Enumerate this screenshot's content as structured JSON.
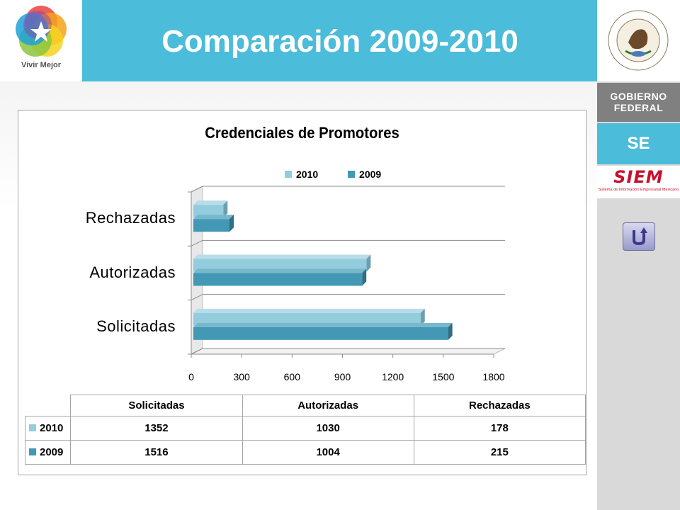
{
  "header": {
    "title": "Comparación 2009-2010",
    "logo_text": "Vivir Mejor"
  },
  "sidebar": {
    "gobierno_line1": "Gobierno",
    "gobierno_line2": "Federal",
    "se_label": "SE",
    "siem_label": "SIEM",
    "siem_sub": "Sistema de Información Empresarial Mexicano",
    "seal_text": "Estados Unidos Mexicanos",
    "back_icon": "return-arrow-icon"
  },
  "colors": {
    "accent": "#4bbcd9",
    "series_2010": "#93cddd",
    "series_2009": "#4298b5",
    "gobierno": "#808080",
    "siem": "#c8102e"
  },
  "chart_data": {
    "type": "bar",
    "orientation": "horizontal",
    "title": "Credenciales de Promotores",
    "categories": [
      "Solicitadas",
      "Autorizadas",
      "Rechazadas"
    ],
    "series": [
      {
        "name": "2010",
        "values": [
          1352,
          1030,
          178
        ]
      },
      {
        "name": "2009",
        "values": [
          1516,
          1004,
          215
        ]
      }
    ],
    "xlim": [
      0,
      1800
    ],
    "ticks": [
      "0",
      "300",
      "600",
      "900",
      "1200",
      "1500",
      "1800"
    ],
    "grid": true,
    "legend": "top",
    "data_table": true
  },
  "table": {
    "headers": [
      "Solicitadas",
      "Autorizadas",
      "Rechazadas"
    ],
    "rows": [
      {
        "label": "2010",
        "cells": [
          "1352",
          "1030",
          "178"
        ]
      },
      {
        "label": "2009",
        "cells": [
          "1516",
          "1004",
          "215"
        ]
      }
    ]
  }
}
